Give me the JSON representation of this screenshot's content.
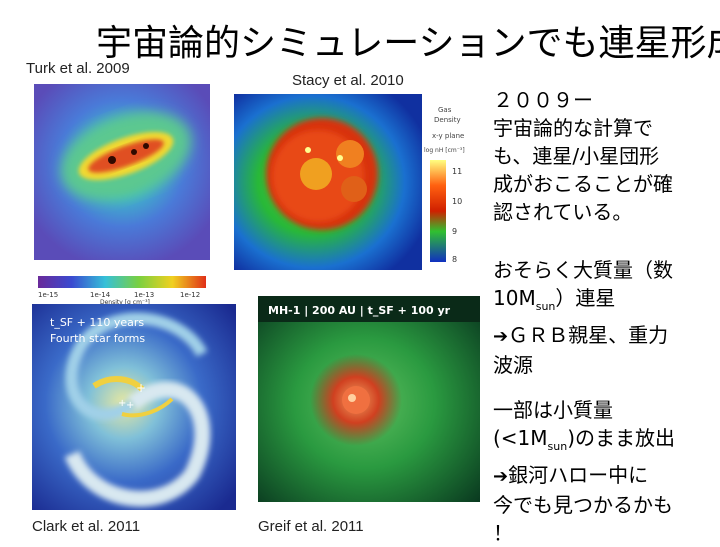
{
  "slide": {
    "title": "宇宙論的シミュレーションでも連星形成",
    "citations": {
      "turk": "Turk et al. 2009",
      "stacy": "Stacy et al. 2010",
      "clark": "Clark et al. 2011",
      "greif": "Greif et al. 2011"
    }
  },
  "panels": {
    "turk_colorbar_ticks": [
      "1e-15",
      "1e-14",
      "1e-13",
      "1e-12"
    ],
    "turk_colorbar_label": "Density [g cm⁻³]",
    "stacy_legend": {
      "line1": "Gas",
      "line2": "Density",
      "line3": "x-y plane",
      "line4": "log nH [cm⁻³]",
      "ticks": [
        "11",
        "10",
        "9",
        "8"
      ]
    },
    "clark_caption_1": "t_SF + 110 years",
    "clark_caption_2": "Fourth star forms",
    "greif_header": "MH-1 | 200 AU | t_SF + 100 yr"
  },
  "body": {
    "p1": [
      "２００９ー",
      "宇宙論的な計算で",
      "も、連星/小星団形",
      "成がおこることが確",
      "認されている。"
    ],
    "p2": {
      "line1": "おそらく大質量（数",
      "line2_pre": "10M",
      "line2_sub": "sun",
      "line2_post": "）連星",
      "line3": "ＧＲＢ親星、重力",
      "line4": "波源"
    },
    "p3": {
      "line1": "一部は小質量",
      "line2_pre": "(<1M",
      "line2_sub": "sun",
      "line2_post": ")のまま放出",
      "line3": "銀河ハロー中に",
      "line4": "今でも見つかるかも",
      "line5": "！"
    }
  },
  "colors": {
    "arrow": "#000000"
  }
}
